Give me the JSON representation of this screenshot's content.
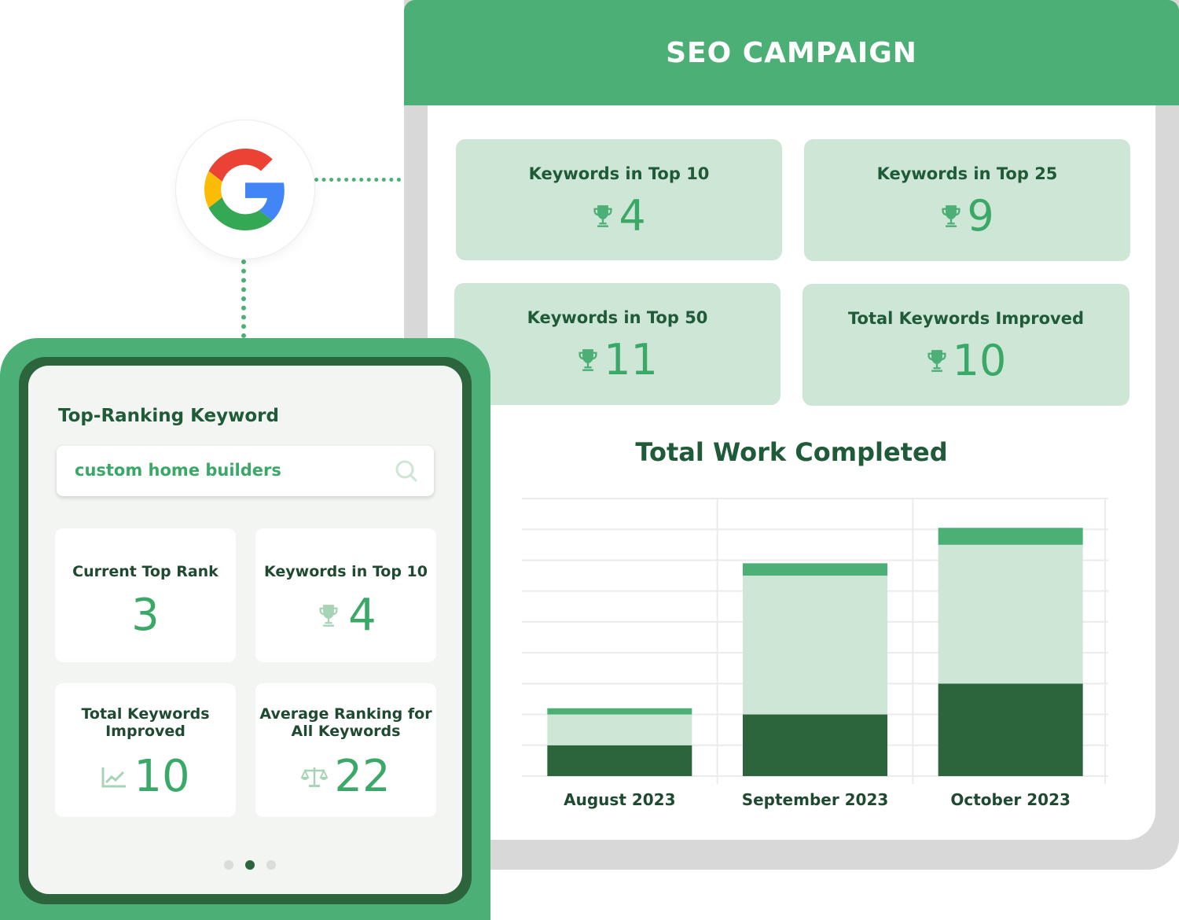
{
  "seo": {
    "title": "SEO CAMPAIGN",
    "cards": [
      {
        "label": "Keywords in Top 10",
        "value": "4",
        "icon": "trophy-icon"
      },
      {
        "label": "Keywords in Top 25",
        "value": "9",
        "icon": "trophy-icon"
      },
      {
        "label": "Keywords in Top 50",
        "value": "11",
        "icon": "trophy-icon"
      },
      {
        "label": "Total Keywords Improved",
        "value": "10",
        "icon": "trophy-icon"
      }
    ]
  },
  "chart_data": {
    "type": "bar",
    "title": "Total Work Completed",
    "categories": [
      "August 2023",
      "September 2023",
      "October 2023"
    ],
    "stacked": true,
    "series": [
      {
        "values": [
          2,
          4,
          6
        ],
        "color": "#2c643c"
      },
      {
        "values": [
          2,
          9,
          9
        ],
        "color": "#cde6d6"
      },
      {
        "values": [
          0.4,
          0.8,
          1.1
        ],
        "color": "#4caf76"
      }
    ],
    "ylim": [
      0,
      18
    ],
    "grid": true
  },
  "phone": {
    "title": "Top-Ranking Keyword",
    "search_value": "custom home builders",
    "cards": [
      {
        "label": "Current Top Rank",
        "value": "3",
        "icon": ""
      },
      {
        "label": "Keywords in Top 10",
        "value": "4",
        "icon": "trophy-icon"
      },
      {
        "label": "Total Keywords Improved",
        "value": "10",
        "icon": "chart-trend-icon"
      },
      {
        "label": "Average Ranking for All Keywords",
        "value": "22",
        "icon": "scale-icon"
      }
    ],
    "page_dots": {
      "count": 3,
      "active": 2
    }
  },
  "colors": {
    "brand_green": "#4caf76",
    "dark_green": "#2c643c",
    "light_green": "#cde6d6",
    "text_green": "#1f5a39"
  }
}
